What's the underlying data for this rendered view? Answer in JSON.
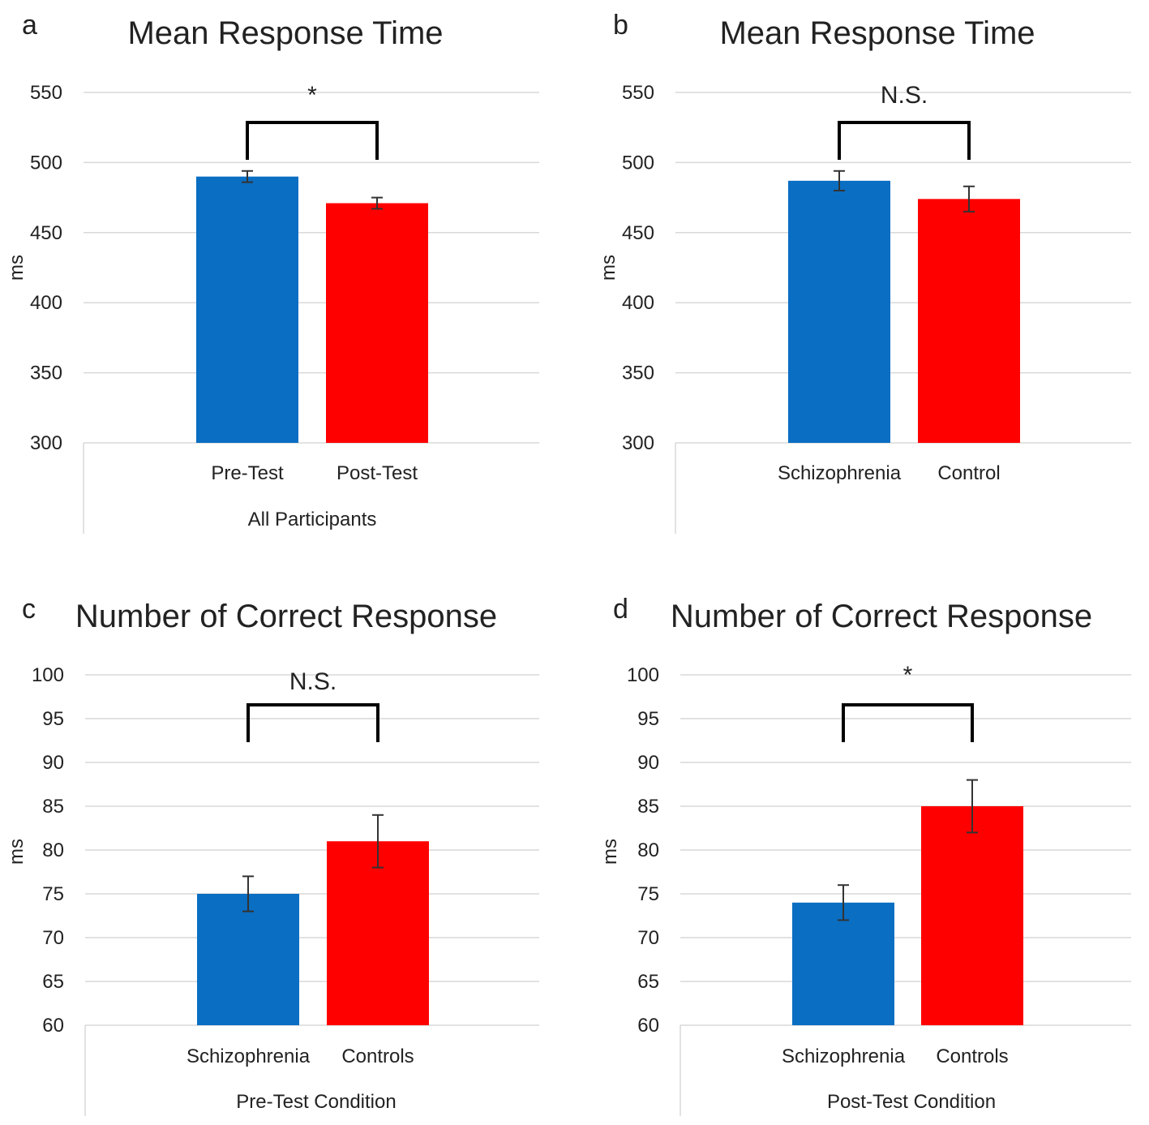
{
  "colors": {
    "blue": "#0a6ec3",
    "red": "#ff0000"
  },
  "chart_data": [
    {
      "panel": "a",
      "type": "bar",
      "title": "Mean Response Time",
      "ylabel": "ms",
      "xlabel": "All Participants",
      "categories": [
        "Pre-Test",
        "Post-Test"
      ],
      "values": [
        490,
        471
      ],
      "errors": [
        4,
        4
      ],
      "bar_colors": [
        "#0a6ec3",
        "#ff0000"
      ],
      "ylim": [
        300,
        550
      ],
      "yticks": [
        300,
        350,
        400,
        450,
        500,
        550
      ],
      "grid": true,
      "significance": "*"
    },
    {
      "panel": "b",
      "type": "bar",
      "title": "Mean Response Time",
      "ylabel": "ms",
      "xlabel": "",
      "categories": [
        "Schizophrenia",
        "Control"
      ],
      "values": [
        487,
        474
      ],
      "errors": [
        7,
        9
      ],
      "bar_colors": [
        "#0a6ec3",
        "#ff0000"
      ],
      "ylim": [
        300,
        550
      ],
      "yticks": [
        300,
        350,
        400,
        450,
        500,
        550
      ],
      "grid": true,
      "significance": "N.S."
    },
    {
      "panel": "c",
      "type": "bar",
      "title": "Number of Correct Response",
      "ylabel": "ms",
      "xlabel": "Pre-Test Condition",
      "categories": [
        "Schizophrenia",
        "Controls"
      ],
      "values": [
        75,
        81
      ],
      "errors": [
        2,
        3
      ],
      "bar_colors": [
        "#0a6ec3",
        "#ff0000"
      ],
      "ylim": [
        60,
        100
      ],
      "yticks": [
        60,
        65,
        70,
        75,
        80,
        85,
        90,
        95,
        100
      ],
      "grid": true,
      "significance": "N.S."
    },
    {
      "panel": "d",
      "type": "bar",
      "title": "Number of Correct Response",
      "ylabel": "ms",
      "xlabel": "Post-Test Condition",
      "categories": [
        "Schizophrenia",
        "Controls"
      ],
      "values": [
        74,
        85
      ],
      "errors": [
        2,
        3
      ],
      "bar_colors": [
        "#0a6ec3",
        "#ff0000"
      ],
      "ylim": [
        60,
        100
      ],
      "yticks": [
        60,
        65,
        70,
        75,
        80,
        85,
        90,
        95,
        100
      ],
      "grid": true,
      "significance": "*"
    }
  ]
}
